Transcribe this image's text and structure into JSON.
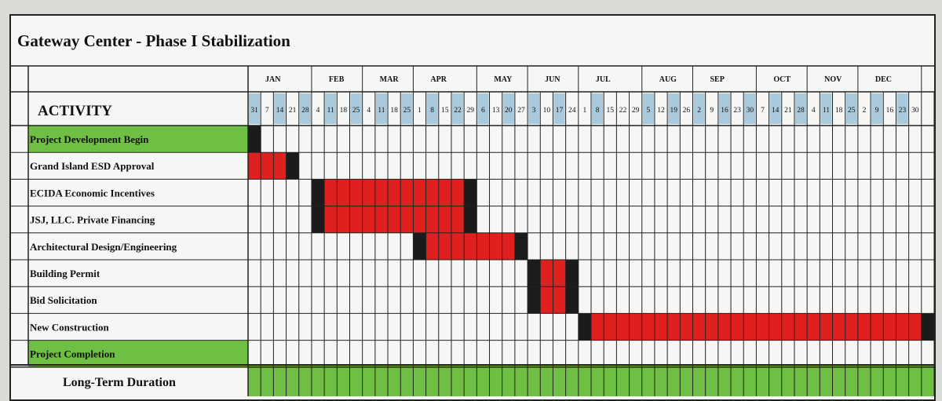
{
  "title": "Gateway Center - Phase I Stabilization",
  "activity_header": "ACTIVITY",
  "footer_label": "Long-Term Duration",
  "colors": {
    "bar": "#e0201f",
    "milestone": "#1b1b1b",
    "green": "#6fbf44",
    "week_highlight": "#a9c9dc",
    "grid": "#222222"
  },
  "chart_data": {
    "type": "gantt",
    "months": [
      {
        "name": "JAN",
        "days": [
          "31",
          "7",
          "14",
          "21",
          "28"
        ]
      },
      {
        "name": "FEB",
        "days": [
          "4",
          "11",
          "18",
          "25"
        ]
      },
      {
        "name": "MAR",
        "days": [
          "4",
          "11",
          "18",
          "25"
        ]
      },
      {
        "name": "APR",
        "days": [
          "1",
          "8",
          "15",
          "22",
          "29"
        ]
      },
      {
        "name": "MAY",
        "days": [
          "6",
          "13",
          "20",
          "27"
        ]
      },
      {
        "name": "JUN",
        "days": [
          "3",
          "10",
          "17",
          "24"
        ]
      },
      {
        "name": "JUL",
        "days": [
          "1",
          "8",
          "15",
          "22",
          "29"
        ]
      },
      {
        "name": "AUG",
        "days": [
          "5",
          "12",
          "19",
          "26"
        ]
      },
      {
        "name": "SEP",
        "days": [
          "2",
          "9",
          "16",
          "23",
          "30"
        ]
      },
      {
        "name": "OCT",
        "days": [
          "7",
          "14",
          "21",
          "28"
        ]
      },
      {
        "name": "NOV",
        "days": [
          "4",
          "11",
          "18",
          "25"
        ]
      },
      {
        "name": "DEC",
        "days": [
          "2",
          "9",
          "16",
          "23",
          "30"
        ]
      }
    ],
    "highlight_weeks": [
      "Jan 31",
      "Jan 14",
      "Jan 28",
      "Feb 11",
      "Feb 25",
      "Mar 11",
      "Mar 25",
      "Apr 8",
      "Apr 22",
      "May 6",
      "May 20",
      "Jun 3",
      "Jun 17",
      "Jul 8",
      "Aug 5",
      "Aug 19",
      "Sep 2",
      "Sep 16",
      "Sep 30",
      "Oct 14",
      "Oct 28",
      "Nov 11",
      "Nov 25",
      "Dec 9",
      "Dec 23"
    ],
    "activities": [
      {
        "name": "Project Development Begin",
        "green": true,
        "cells": [
          {
            "week": "Jan 31",
            "kind": "milestone"
          }
        ]
      },
      {
        "name": "Grand Island ESD Approval",
        "cells": [
          {
            "week": "Jan 31",
            "kind": "bar"
          },
          {
            "week": "Jan 7",
            "kind": "bar"
          },
          {
            "week": "Jan 14",
            "kind": "bar"
          },
          {
            "week": "Jan 21",
            "kind": "milestone"
          }
        ]
      },
      {
        "name": "ECIDA Economic Incentives",
        "cells": [
          {
            "week": "Feb 4",
            "kind": "milestone"
          },
          {
            "from": "Feb 11",
            "to": "Apr 22",
            "kind": "bar"
          },
          {
            "week": "Apr 29",
            "kind": "milestone"
          }
        ]
      },
      {
        "name": "JSJ, LLC. Private Financing",
        "cells": [
          {
            "week": "Feb 4",
            "kind": "milestone"
          },
          {
            "from": "Feb 11",
            "to": "Apr 22",
            "kind": "bar"
          },
          {
            "week": "Apr 29",
            "kind": "milestone"
          }
        ]
      },
      {
        "name": "Architectural Design/Engineering",
        "cells": [
          {
            "week": "Apr 1",
            "kind": "milestone"
          },
          {
            "from": "Apr 8",
            "to": "May 20",
            "kind": "bar"
          },
          {
            "week": "May 27",
            "kind": "milestone"
          }
        ]
      },
      {
        "name": "Building Permit",
        "cells": [
          {
            "week": "Jun 3",
            "kind": "milestone"
          },
          {
            "from": "Jun 10",
            "to": "Jun 17",
            "kind": "bar"
          },
          {
            "week": "Jun 24",
            "kind": "milestone"
          }
        ]
      },
      {
        "name": "Bid Solicitation",
        "cells": [
          {
            "week": "Jun 3",
            "kind": "milestone"
          },
          {
            "from": "Jun 10",
            "to": "Jun 17",
            "kind": "bar"
          },
          {
            "week": "Jun 24",
            "kind": "milestone"
          }
        ]
      },
      {
        "name": "New Construction",
        "cells": [
          {
            "week": "Jul 1",
            "kind": "milestone"
          },
          {
            "from": "Jul 8",
            "to": "Dec 30",
            "kind": "bar"
          },
          {
            "week": "end",
            "kind": "milestone"
          }
        ]
      },
      {
        "name": "Project Completion",
        "green": true,
        "cells": []
      }
    ],
    "long_term_duration": {
      "from": "Jan 31",
      "to": "end"
    }
  }
}
